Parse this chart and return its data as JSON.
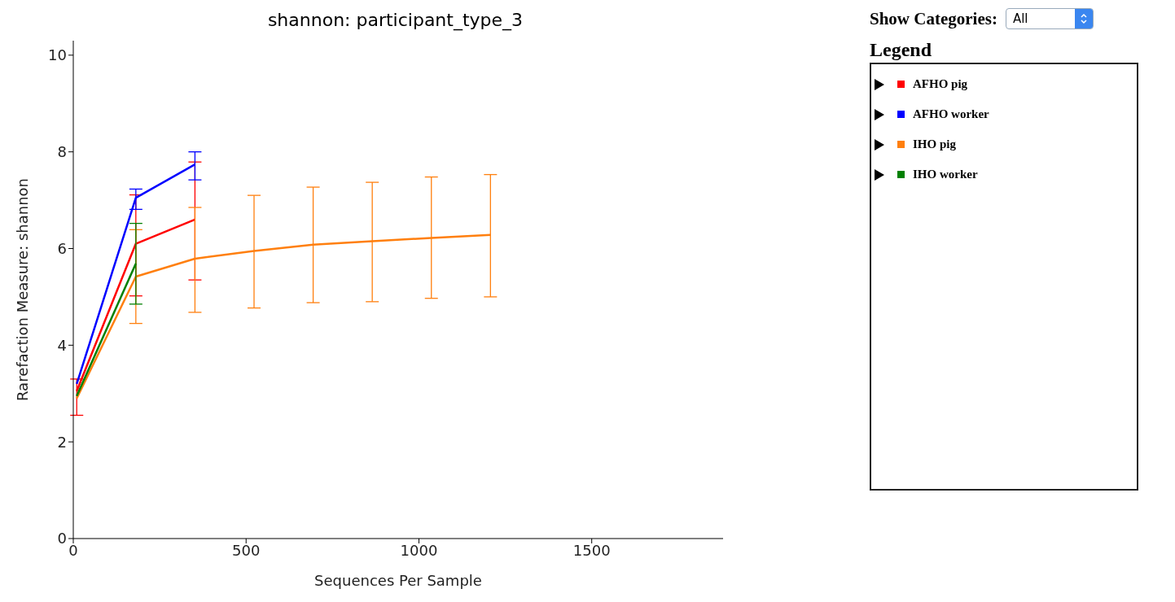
{
  "chart_data": {
    "type": "line",
    "title": "shannon: participant_type_3",
    "xlabel": "Sequences Per Sample",
    "ylabel": "Rarefaction Measure: shannon",
    "legend_title": "Legend",
    "legend": "right",
    "annotations": [
      "Show Categories:",
      "All"
    ],
    "xlim": [
      0,
      1880
    ],
    "xticks": [
      0,
      500,
      1000,
      1500
    ],
    "ylim": [
      0,
      10.3
    ],
    "yticks": [
      0,
      2,
      4,
      6,
      8,
      10
    ],
    "series": [
      {
        "name": "AFHO pig",
        "color": "#ff0000",
        "x": [
          10,
          181,
          352
        ],
        "values": [
          3.05,
          6.1,
          6.6
        ],
        "errors": [
          [
            2.55,
            3.3
          ],
          [
            5.02,
            7.11
          ],
          [
            5.35,
            7.79
          ]
        ]
      },
      {
        "name": "AFHO worker",
        "color": "#0000ff",
        "x": [
          10,
          181,
          352
        ],
        "values": [
          3.2,
          7.05,
          7.74
        ],
        "errors": [
          null,
          [
            6.81,
            7.23
          ],
          [
            7.42,
            8.0
          ]
        ]
      },
      {
        "name": "IHO pig",
        "color": "#ff7f0e",
        "x": [
          10,
          181,
          352,
          523,
          694,
          865,
          1036,
          1207
        ],
        "values": [
          2.9,
          5.42,
          5.79,
          5.95,
          6.08,
          6.15,
          6.22,
          6.28
        ],
        "errors": [
          null,
          [
            4.45,
            6.39
          ],
          [
            4.68,
            6.85
          ],
          [
            4.77,
            7.1
          ],
          [
            4.88,
            7.27
          ],
          [
            4.9,
            7.37
          ],
          [
            4.97,
            7.48
          ],
          [
            5.0,
            7.53
          ]
        ]
      },
      {
        "name": "IHO worker",
        "color": "#008000",
        "x": [
          10,
          181
        ],
        "values": [
          2.95,
          5.69
        ],
        "errors": [
          null,
          [
            4.85,
            6.52
          ]
        ]
      }
    ]
  }
}
